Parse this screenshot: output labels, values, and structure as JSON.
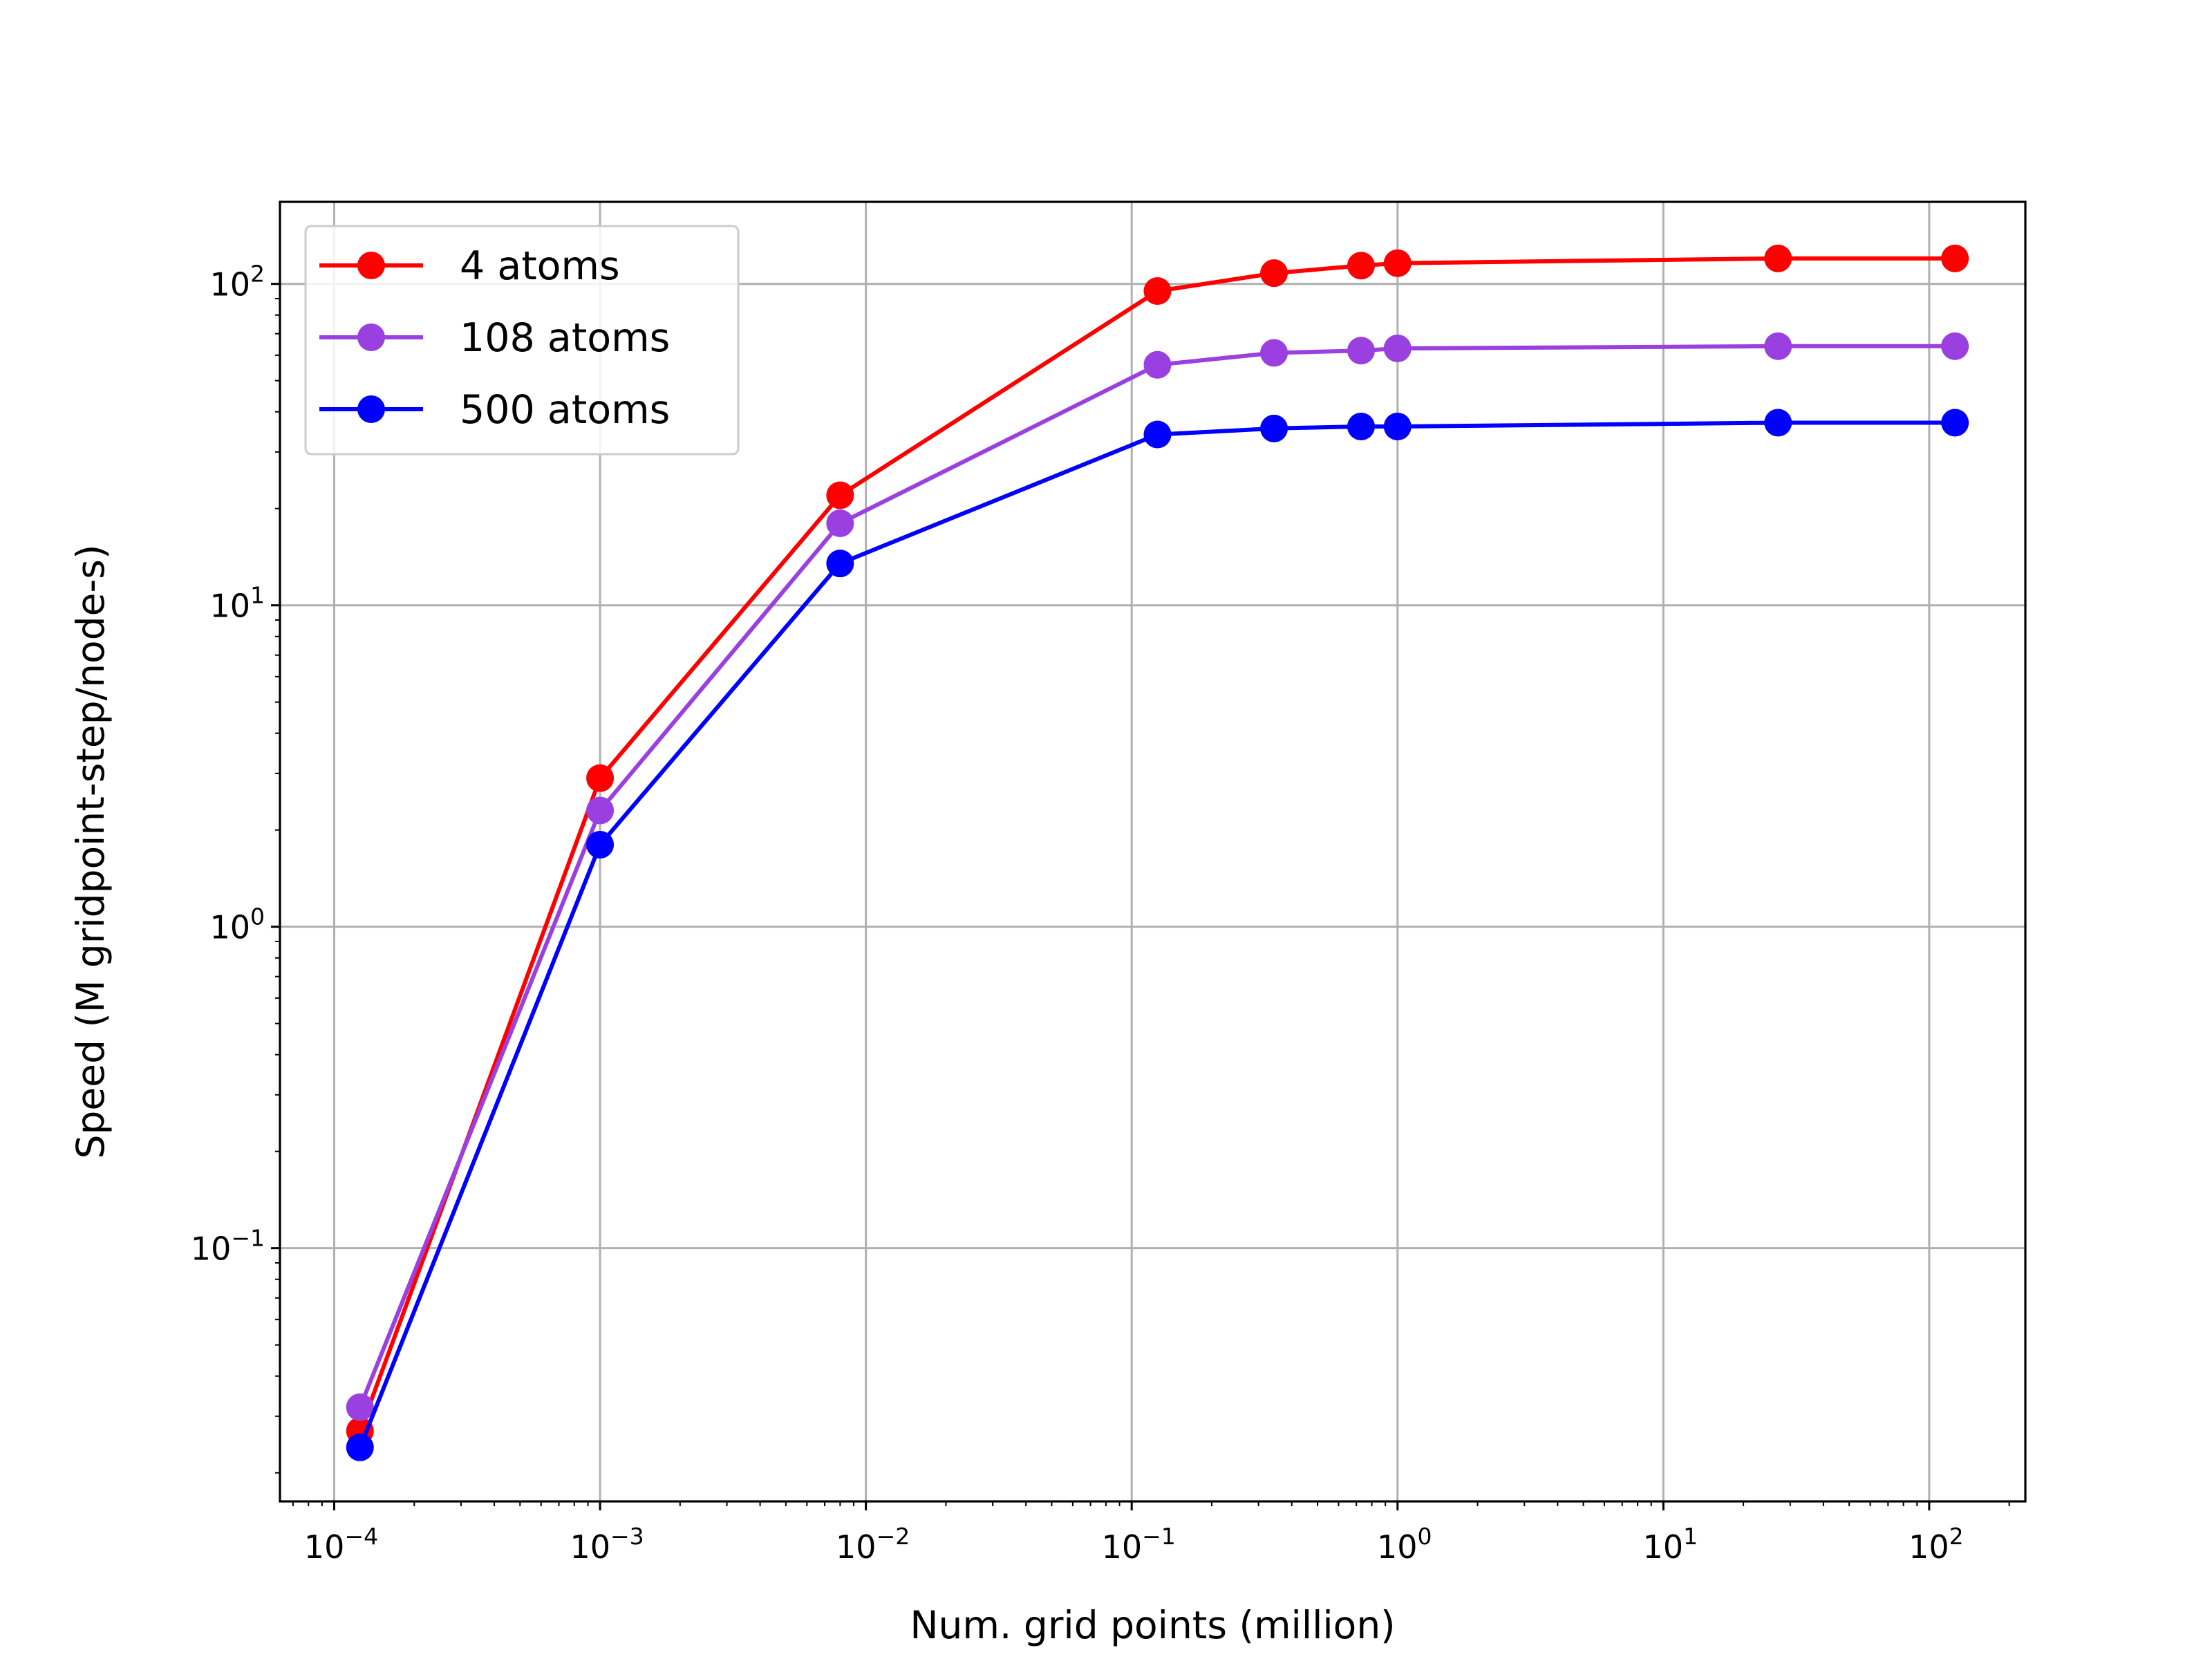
{
  "chart_data": {
    "type": "line",
    "title": "",
    "xlabel": "Num. grid points (million)",
    "ylabel": "Speed (M gridpoint-step/node-s)",
    "xscale": "log",
    "yscale": "log",
    "xlim": [
      6.25e-05,
      230
    ],
    "ylim": [
      0.0163,
      180
    ],
    "grid": true,
    "legend_position": "top-left",
    "x": [
      0.000125,
      0.001,
      0.008,
      0.125,
      0.343,
      0.729,
      1.0,
      27.0,
      125.0
    ],
    "series": [
      {
        "name": "4 atoms",
        "color": "#ff0000",
        "values": [
          0.027,
          2.9,
          22,
          95,
          108,
          114,
          116,
          120,
          120
        ]
      },
      {
        "name": "108 atoms",
        "color": "#9b40e0",
        "values": [
          0.032,
          2.3,
          18,
          56,
          61,
          62,
          63,
          64,
          64
        ]
      },
      {
        "name": "500 atoms",
        "color": "#0000ff",
        "values": [
          0.024,
          1.8,
          13.5,
          34,
          35.5,
          36,
          36,
          37,
          37
        ]
      }
    ],
    "x_ticks": [
      {
        "base": "10",
        "exp": "−4",
        "value": 0.0001
      },
      {
        "base": "10",
        "exp": "−3",
        "value": 0.001
      },
      {
        "base": "10",
        "exp": "−2",
        "value": 0.01
      },
      {
        "base": "10",
        "exp": "−1",
        "value": 0.1
      },
      {
        "base": "10",
        "exp": "0",
        "value": 1
      },
      {
        "base": "10",
        "exp": "1",
        "value": 10
      },
      {
        "base": "10",
        "exp": "2",
        "value": 100
      }
    ],
    "y_ticks": [
      {
        "base": "10",
        "exp": "−1",
        "value": 0.1
      },
      {
        "base": "10",
        "exp": "0",
        "value": 1
      },
      {
        "base": "10",
        "exp": "1",
        "value": 10
      },
      {
        "base": "10",
        "exp": "2",
        "value": 100
      }
    ]
  }
}
